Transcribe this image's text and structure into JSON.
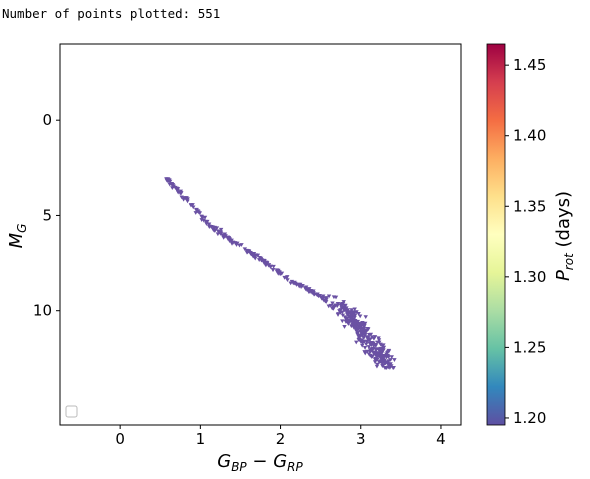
{
  "header": {
    "label": "Number of points plotted:",
    "count": "551"
  },
  "chart_data": {
    "type": "scatter",
    "marker": "triangle-down",
    "marker_color": "#6a51a3",
    "xlabel": "G_BP − G_RP",
    "ylabel": "M_G",
    "xlim": [
      -0.75,
      4.25
    ],
    "ylim": [
      16,
      -4
    ],
    "y_inverted": true,
    "x_ticks": [
      0,
      1,
      2,
      3,
      4
    ],
    "y_ticks": [
      0,
      5,
      10
    ],
    "grid": false,
    "legend": {
      "placement": "lower-left",
      "entries": []
    },
    "colorbar": {
      "label": "P_rot (days)",
      "colormap": "Spectral_r",
      "range": [
        1.195,
        1.465
      ],
      "ticks": [
        "1.20",
        "1.25",
        "1.30",
        "1.35",
        "1.40",
        "1.45"
      ],
      "colors": [
        "#5e4fa2",
        "#3288bd",
        "#66c2a5",
        "#abdda4",
        "#e6f598",
        "#ffffbf",
        "#fee08b",
        "#fdae61",
        "#f46d43",
        "#d53e4f",
        "#9e0142"
      ]
    },
    "main_sequence_trend": [
      [
        0.58,
        3.1
      ],
      [
        0.7,
        3.6
      ],
      [
        0.85,
        4.3
      ],
      [
        1.0,
        5.0
      ],
      [
        1.15,
        5.6
      ],
      [
        1.35,
        6.2
      ],
      [
        1.55,
        6.8
      ],
      [
        1.75,
        7.3
      ],
      [
        1.95,
        7.9
      ],
      [
        2.15,
        8.5
      ],
      [
        2.35,
        8.9
      ],
      [
        2.55,
        9.4
      ],
      [
        2.75,
        9.9
      ],
      [
        2.9,
        10.5
      ],
      [
        3.0,
        11.0
      ],
      [
        3.1,
        11.6
      ],
      [
        3.2,
        12.2
      ],
      [
        3.3,
        12.6
      ],
      [
        3.4,
        12.9
      ]
    ],
    "n_points": 551
  }
}
